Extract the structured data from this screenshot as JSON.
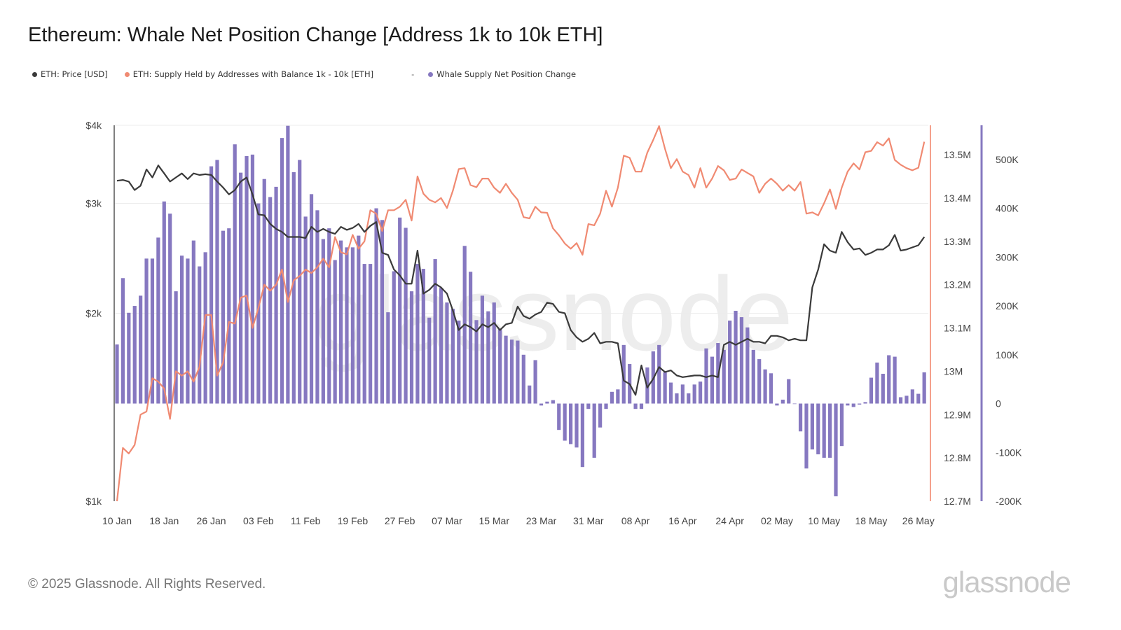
{
  "title": "Ethereum: Whale Net Position Change [Address 1k to 10k ETH]",
  "legend": [
    {
      "label": "ETH: Price [USD]",
      "color": "#3a3a3a"
    },
    {
      "label": "ETH: Supply Held by Addresses with Balance 1k - 10k [ETH]",
      "color": "#f08a72"
    },
    {
      "label": "Whale Supply Net Position Change",
      "color": "#8678c0"
    }
  ],
  "legend_separator": "-",
  "footer": "© 2025 Glassnode. All Rights Reserved.",
  "logo": "glassnode",
  "watermark": "glassnode",
  "chart_data": {
    "type": "bar+line",
    "title": "Ethereum: Whale Net Position Change [Address 1k to 10k ETH]",
    "x_range": [
      "2025-01-10",
      "2025-05-27"
    ],
    "frequency": "daily",
    "x_tick_labels": [
      "10 Jan",
      "18 Jan",
      "26 Jan",
      "03 Feb",
      "11 Feb",
      "19 Feb",
      "27 Feb",
      "07 Mar",
      "15 Mar",
      "23 Mar",
      "31 Mar",
      "08 Apr",
      "16 Apr",
      "24 Apr",
      "02 May",
      "10 May",
      "18 May",
      "26 May"
    ],
    "axes": {
      "price": {
        "side": "left",
        "scale": "log",
        "range": [
          1000,
          4000
        ],
        "tick_labels": [
          "$1k",
          "$2k",
          "$3k",
          "$4k"
        ],
        "ticks": [
          1000,
          2000,
          3000,
          4000
        ],
        "grid": true
      },
      "supply": {
        "side": "right",
        "scale": "linear",
        "range": [
          12.7,
          13.568
        ],
        "unit": "M",
        "tick_labels": [
          "12.7M",
          "12.8M",
          "12.9M",
          "13M",
          "13.1M",
          "13.2M",
          "13.3M",
          "13.4M",
          "13.5M"
        ],
        "ticks": [
          12.7,
          12.8,
          12.9,
          13.0,
          13.1,
          13.2,
          13.3,
          13.4,
          13.5
        ],
        "color": "#f08a72"
      },
      "net_change": {
        "side": "right-outer",
        "scale": "linear",
        "range": [
          -200,
          570
        ],
        "unit": "K",
        "tick_labels": [
          "-200K",
          "-100K",
          "0",
          "100K",
          "200K",
          "300K",
          "400K",
          "500K"
        ],
        "ticks": [
          -200,
          -100,
          0,
          100,
          200,
          300,
          400,
          500
        ],
        "color": "#8678c0"
      }
    },
    "series": [
      {
        "name": "ETH: Price [USD]",
        "type": "line",
        "axis": "price",
        "color": "#3a3a3a",
        "values": [
          3260,
          3270,
          3250,
          3150,
          3200,
          3400,
          3300,
          3450,
          3350,
          3250,
          3300,
          3350,
          3280,
          3350,
          3330,
          3340,
          3330,
          3250,
          3180,
          3100,
          3150,
          3250,
          3300,
          3100,
          2880,
          2870,
          2780,
          2730,
          2700,
          2650,
          2650,
          2650,
          2640,
          2750,
          2700,
          2730,
          2700,
          2680,
          2750,
          2720,
          2740,
          2780,
          2700,
          2760,
          2800,
          2500,
          2480,
          2350,
          2300,
          2230,
          2230,
          2520,
          2150,
          2180,
          2230,
          2200,
          2150,
          2020,
          1880,
          1920,
          1900,
          1870,
          1920,
          1900,
          1930,
          1880,
          1920,
          1930,
          2050,
          1980,
          1960,
          1990,
          2010,
          2080,
          2070,
          2010,
          2000,
          1880,
          1830,
          1800,
          1820,
          1860,
          1790,
          1800,
          1800,
          1790,
          1560,
          1540,
          1480,
          1650,
          1520,
          1570,
          1640,
          1610,
          1620,
          1590,
          1580,
          1585,
          1590,
          1590,
          1580,
          1590,
          1580,
          1780,
          1800,
          1780,
          1800,
          1820,
          1800,
          1800,
          1790,
          1840,
          1840,
          1830,
          1810,
          1820,
          1810,
          1810,
          2200,
          2350,
          2580,
          2520,
          2500,
          2700,
          2600,
          2530,
          2540,
          2480,
          2500,
          2530,
          2530,
          2570,
          2670,
          2520,
          2530,
          2550,
          2570,
          2650
        ]
      },
      {
        "name": "ETH: Supply Held by Addresses with Balance 1k - 10k [ETH]",
        "type": "line",
        "axis": "supply",
        "unit": "M",
        "color": "#f08a72",
        "values": [
          12.7,
          12.823,
          12.81,
          12.83,
          12.9,
          12.907,
          12.984,
          12.976,
          12.96,
          12.89,
          13.0,
          12.99,
          13.0,
          12.976,
          13.01,
          13.13,
          13.13,
          12.99,
          13.02,
          13.114,
          13.11,
          13.17,
          13.175,
          13.1,
          13.146,
          13.2,
          13.186,
          13.2,
          13.235,
          13.16,
          13.21,
          13.22,
          13.235,
          13.227,
          13.24,
          13.26,
          13.24,
          13.31,
          13.275,
          13.27,
          13.315,
          13.283,
          13.3,
          13.372,
          13.364,
          13.324,
          13.372,
          13.372,
          13.38,
          13.396,
          13.348,
          13.45,
          13.41,
          13.396,
          13.39,
          13.4,
          13.377,
          13.417,
          13.467,
          13.469,
          13.43,
          13.425,
          13.445,
          13.445,
          13.424,
          13.412,
          13.433,
          13.412,
          13.396,
          13.356,
          13.353,
          13.38,
          13.367,
          13.366,
          13.33,
          13.314,
          13.295,
          13.283,
          13.296,
          13.269,
          13.34,
          13.337,
          13.364,
          13.417,
          13.38,
          13.424,
          13.498,
          13.493,
          13.461,
          13.461,
          13.505,
          13.534,
          13.566,
          13.514,
          13.469,
          13.49,
          13.461,
          13.453,
          13.424,
          13.469,
          13.424,
          13.445,
          13.474,
          13.464,
          13.442,
          13.445,
          13.466,
          13.458,
          13.45,
          13.412,
          13.433,
          13.445,
          13.433,
          13.417,
          13.43,
          13.417,
          13.437,
          13.364,
          13.367,
          13.36,
          13.388,
          13.42,
          13.375,
          13.424,
          13.461,
          13.48,
          13.466,
          13.506,
          13.509,
          13.529,
          13.521,
          13.538,
          13.488,
          13.477,
          13.469,
          13.464,
          13.47,
          13.53
        ]
      },
      {
        "name": "Whale Supply Net Position Change",
        "type": "bar",
        "axis": "net_change",
        "unit": "K",
        "color": "#8678c0",
        "values": [
          121,
          257,
          186,
          200,
          221,
          297,
          297,
          340,
          414,
          389,
          230,
          303,
          297,
          334,
          281,
          310,
          486,
          499,
          354,
          359,
          531,
          473,
          507,
          510,
          410,
          460,
          423,
          444,
          544,
          569,
          474,
          499,
          383,
          429,
          396,
          337,
          359,
          294,
          334,
          320,
          320,
          344,
          286,
          286,
          400,
          376,
          187,
          271,
          381,
          360,
          230,
          286,
          276,
          176,
          296,
          237,
          207,
          194,
          170,
          323,
          270,
          171,
          221,
          189,
          207,
          153,
          139,
          131,
          129,
          100,
          37,
          89,
          -4,
          4,
          7,
          -54,
          -76,
          -83,
          -90,
          -130,
          -11,
          -111,
          -49,
          -11,
          24,
          29,
          120,
          81,
          -11,
          -11,
          74,
          107,
          120,
          64,
          43,
          21,
          39,
          21,
          39,
          45,
          113,
          96,
          124,
          110,
          170,
          190,
          177,
          156,
          110,
          91,
          70,
          62,
          -4,
          8,
          50,
          -1,
          -57,
          -133,
          -94,
          -104,
          -111,
          -111,
          -190,
          -87,
          -4,
          -7,
          -2,
          3,
          53,
          84,
          61,
          99,
          96,
          13,
          16,
          29,
          20,
          64
        ]
      }
    ]
  }
}
